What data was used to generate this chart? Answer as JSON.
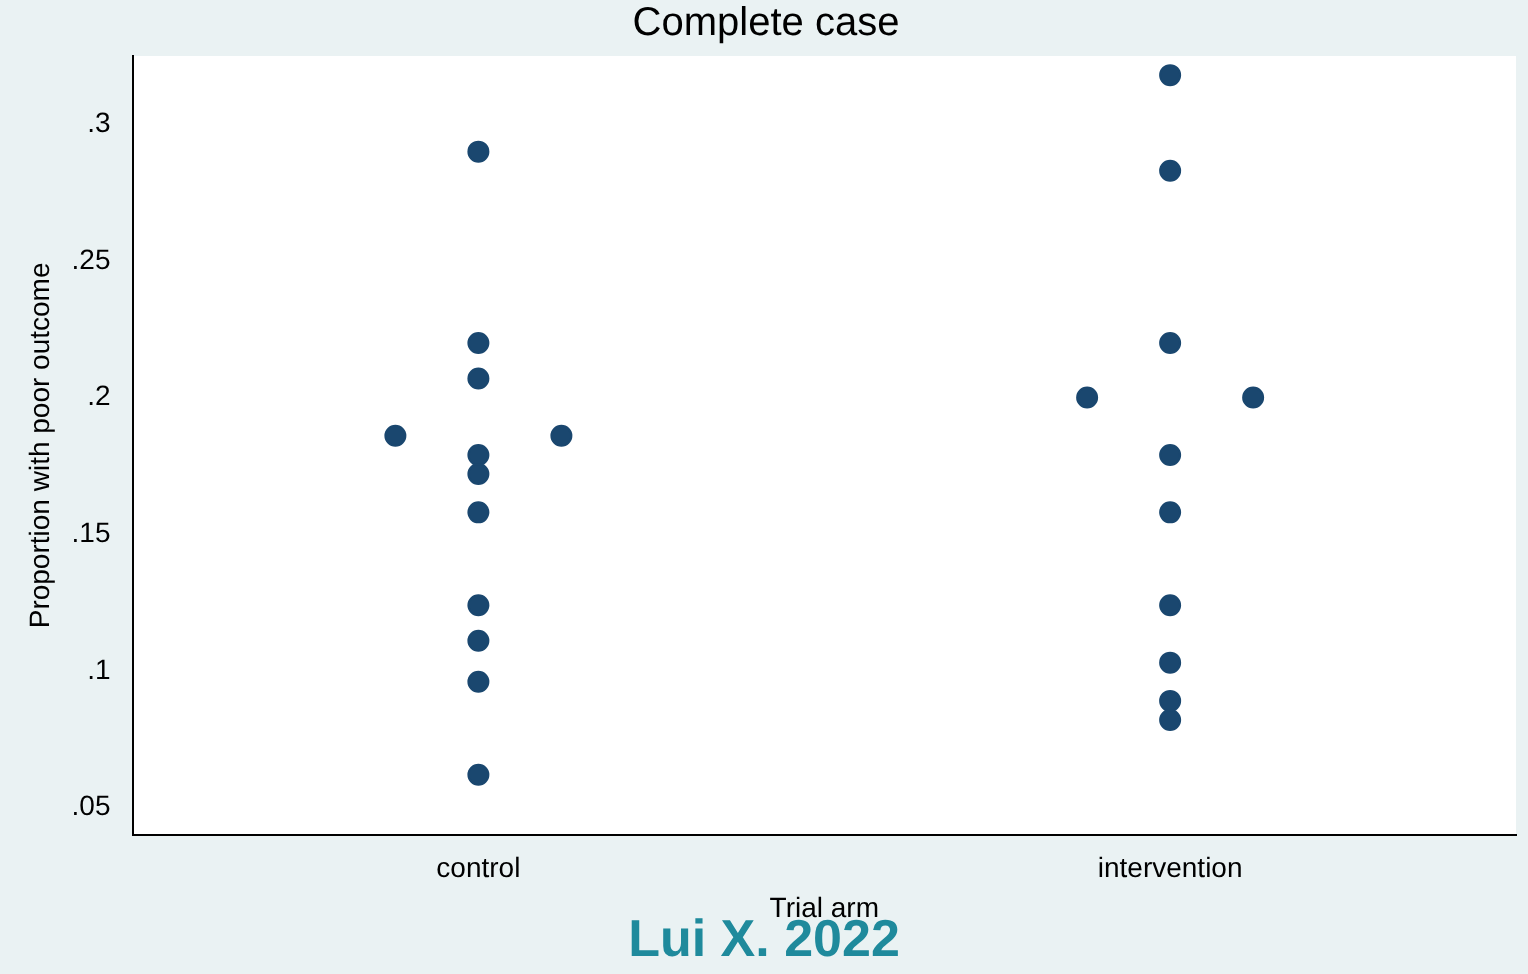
{
  "chart_data": {
    "type": "scatter",
    "title": "Complete case",
    "xlabel": "Trial arm",
    "ylabel": "Proportion with poor outcome",
    "categories": [
      "control",
      "intervention"
    ],
    "series": [
      {
        "color": "#1a476f",
        "x": [
          "control",
          "control",
          "control",
          "control",
          "control",
          "control",
          "control",
          "control",
          "control",
          "control",
          "control",
          "control",
          "intervention",
          "intervention",
          "intervention",
          "intervention",
          "intervention",
          "intervention",
          "intervention",
          "intervention",
          "intervention",
          "intervention",
          "intervention"
        ],
        "values": [
          0.29,
          0.22,
          0.207,
          0.186,
          0.186,
          0.179,
          0.172,
          0.158,
          0.124,
          0.111,
          0.096,
          0.062,
          0.318,
          0.283,
          0.22,
          0.2,
          0.2,
          0.179,
          0.158,
          0.124,
          0.103,
          0.089,
          0.082
        ]
      }
    ],
    "marker": "circle",
    "ylim": [
      0.04,
      0.325
    ],
    "yticks": [
      {
        "value": 0.05,
        "label": ".05"
      },
      {
        "value": 0.1,
        "label": ".1"
      },
      {
        "value": 0.15,
        "label": ".15"
      },
      {
        "value": 0.2,
        "label": ".2"
      },
      {
        "value": 0.25,
        "label": ".25"
      },
      {
        "value": 0.3,
        "label": ".3"
      }
    ],
    "annotations": [
      "Lui X. 2022"
    ]
  }
}
